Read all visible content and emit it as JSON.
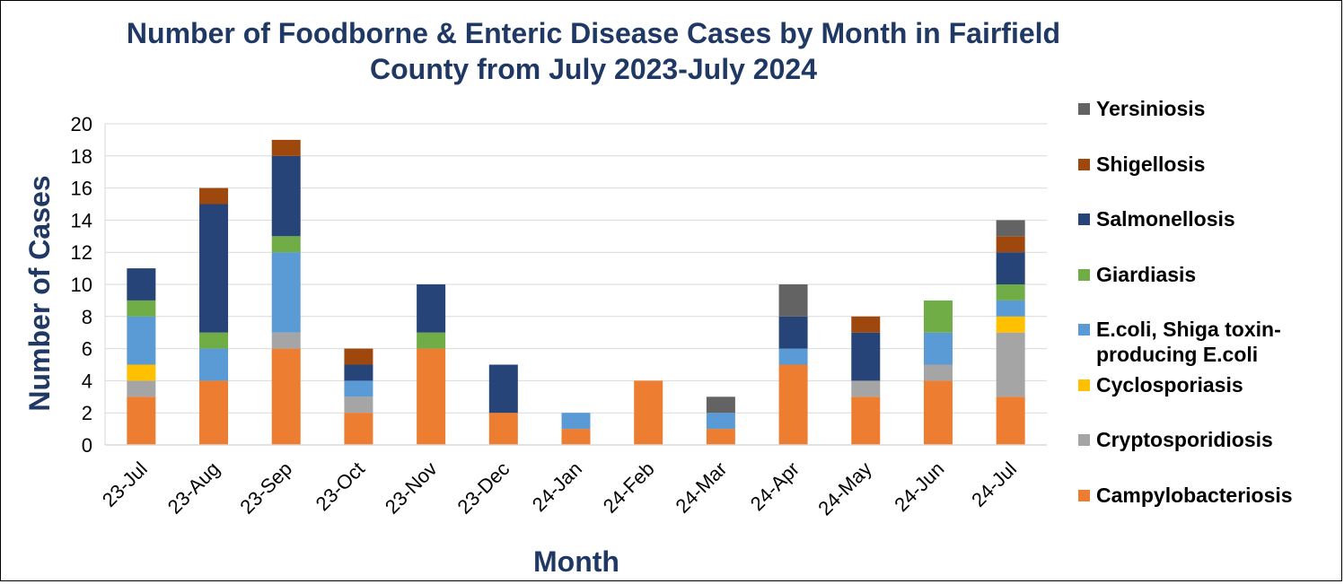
{
  "chart_data": {
    "type": "bar",
    "stacked": true,
    "title": "Number of Foodborne & Enteric Disease Cases by Month in Fairfield County from July 2023-July 2024",
    "title_lines": [
      "Number of Foodborne & Enteric Disease Cases by Month in Fairfield",
      "County from July 2023-July 2024"
    ],
    "xlabel": "Month",
    "ylabel": "Number of Cases",
    "ylim": [
      0,
      20
    ],
    "yticks": [
      0,
      2,
      4,
      6,
      8,
      10,
      12,
      14,
      16,
      18,
      20
    ],
    "grid": true,
    "legend_position": "right",
    "categories": [
      "23-Jul",
      "23-Aug",
      "23-Sep",
      "23-Oct",
      "23-Nov",
      "23-Dec",
      "24-Jan",
      "24-Feb",
      "24-Mar",
      "24-Apr",
      "24-May",
      "24-Jun",
      "24-Jul"
    ],
    "series": [
      {
        "name": "Campylobacteriosis",
        "color": "#ed7d31",
        "values": [
          3,
          4,
          6,
          2,
          6,
          2,
          1,
          4,
          1,
          5,
          3,
          4,
          3
        ]
      },
      {
        "name": "Cryptosporidiosis",
        "color": "#a5a5a5",
        "values": [
          1,
          0,
          1,
          1,
          0,
          0,
          0,
          0,
          0,
          0,
          1,
          1,
          4
        ]
      },
      {
        "name": "Cyclosporiasis",
        "color": "#ffc000",
        "values": [
          1,
          0,
          0,
          0,
          0,
          0,
          0,
          0,
          0,
          0,
          0,
          0,
          1
        ]
      },
      {
        "name": "E.coli, Shiga toxin-producing E.coli",
        "label_lines": [
          "E.coli, Shiga toxin-",
          "producing E.coli"
        ],
        "color": "#5b9bd5",
        "values": [
          3,
          2,
          5,
          1,
          0,
          0,
          1,
          0,
          1,
          1,
          0,
          2,
          1
        ]
      },
      {
        "name": "Giardiasis",
        "color": "#70ad47",
        "values": [
          1,
          1,
          1,
          0,
          1,
          0,
          0,
          0,
          0,
          0,
          0,
          2,
          1
        ]
      },
      {
        "name": "Salmonellosis",
        "color": "#264478",
        "values": [
          2,
          8,
          5,
          1,
          3,
          3,
          0,
          0,
          0,
          2,
          3,
          0,
          2
        ]
      },
      {
        "name": "Shigellosis",
        "color": "#9e480e",
        "values": [
          0,
          1,
          1,
          1,
          0,
          0,
          0,
          0,
          0,
          0,
          1,
          0,
          1
        ]
      },
      {
        "name": "Yersiniosis",
        "color": "#636363",
        "values": [
          0,
          0,
          0,
          0,
          0,
          0,
          0,
          0,
          1,
          2,
          0,
          0,
          1
        ]
      }
    ]
  }
}
